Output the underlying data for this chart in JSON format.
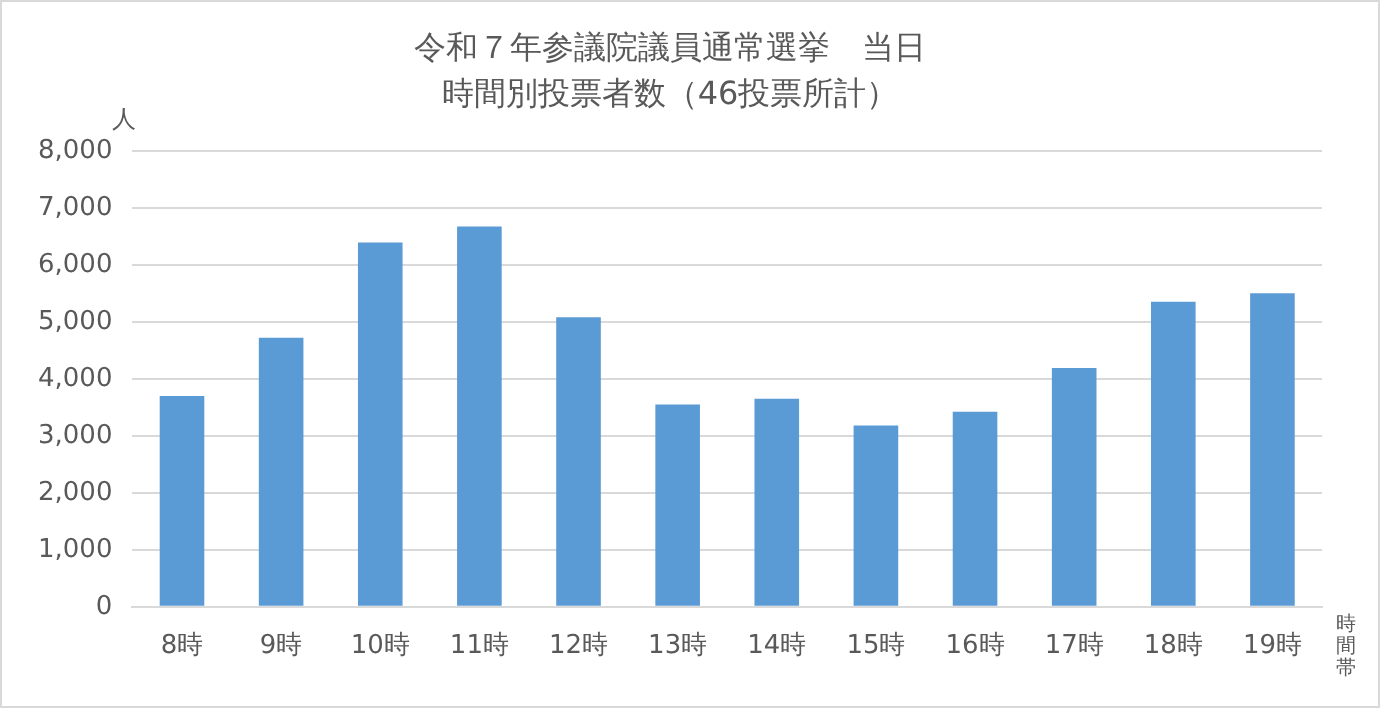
{
  "chart_data": {
    "type": "bar",
    "title": "令和７年参議院議員通常選挙　当日",
    "subtitle": "時間別投票者数（46投票所計）",
    "ylabel": "人",
    "xlabel": "時間帯",
    "categories": [
      "8時",
      "9時",
      "10時",
      "11時",
      "12時",
      "13時",
      "14時",
      "15時",
      "16時",
      "17時",
      "18時",
      "19時"
    ],
    "values": [
      3700,
      4720,
      6390,
      6670,
      5080,
      3550,
      3650,
      3180,
      3420,
      4190,
      5350,
      5500
    ],
    "color": "#5b9bd5",
    "ylim": [
      0,
      8000
    ],
    "yticks": [
      0,
      {
        "value": 1000,
        "label": "1,000"
      },
      {
        "value": 2000,
        "label": "2,000"
      },
      {
        "value": 3000,
        "label": "3,000"
      },
      {
        "value": 4000,
        "label": "4,000"
      },
      {
        "value": 5000,
        "label": "5,000"
      },
      {
        "value": 6000,
        "label": "6,000"
      },
      {
        "value": 7000,
        "label": "7,000"
      },
      {
        "value": 8000,
        "label": "8,000"
      }
    ],
    "grid": "y",
    "legend": false
  }
}
